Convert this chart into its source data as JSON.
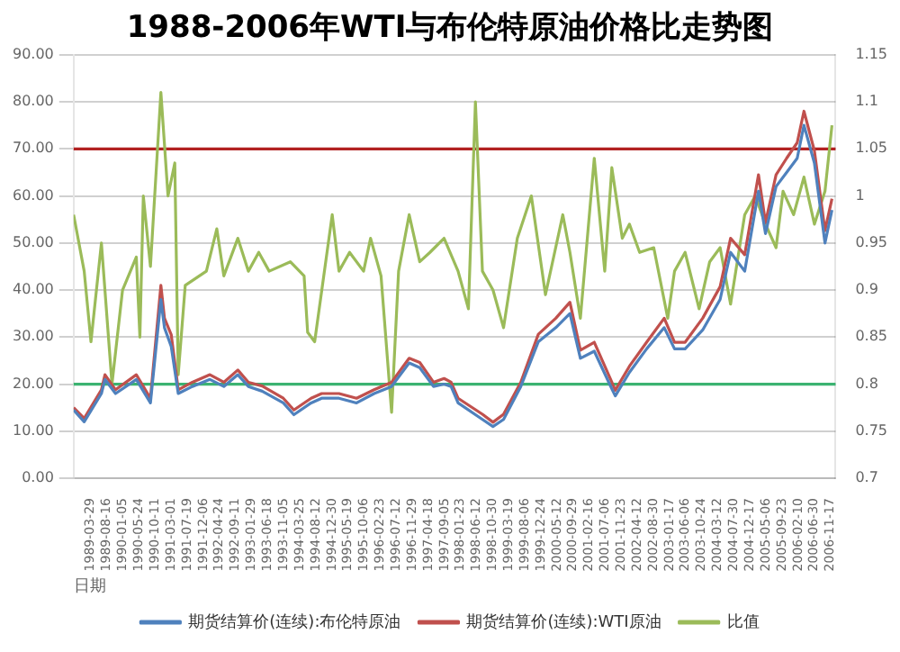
{
  "chart_data": {
    "type": "line",
    "title": "1988-2006年WTI与布伦特原油价格比走势图",
    "xlabel": "日期",
    "xlim": [
      "1988-11-01",
      "2007-01-01"
    ],
    "xticks": [
      {
        "value": "1989-03-29",
        "label": "1989-03-29"
      },
      {
        "value": "1989-08-16",
        "label": "1989-08-16"
      },
      {
        "value": "1990-01-05",
        "label": "1990-01-05"
      },
      {
        "value": "1990-05-24",
        "label": "1990-05-24"
      },
      {
        "value": "1990-10-11",
        "label": "1990-10-11"
      },
      {
        "value": "1991-03-01",
        "label": "1991-03-01"
      },
      {
        "value": "1991-07-19",
        "label": "1991-07-19"
      },
      {
        "value": "1991-12-06",
        "label": "1991-12-06"
      },
      {
        "value": "1992-04-24",
        "label": "1992-04-24"
      },
      {
        "value": "1992-09-11",
        "label": "1992-09-11"
      },
      {
        "value": "1993-01-29",
        "label": "1993-01-29"
      },
      {
        "value": "1993-06-18",
        "label": "1993-06-18"
      },
      {
        "value": "1993-11-05",
        "label": "1993-11-05"
      },
      {
        "value": "1994-03-25",
        "label": "1994-03-25"
      },
      {
        "value": "1994-08-12",
        "label": "1994-08-12"
      },
      {
        "value": "1994-12-30",
        "label": "1994-12-30"
      },
      {
        "value": "1995-05-19",
        "label": "1995-05-19"
      },
      {
        "value": "1995-10-06",
        "label": "1995-10-06"
      },
      {
        "value": "1996-02-23",
        "label": "1996-02-23"
      },
      {
        "value": "1996-07-12",
        "label": "1996-07-12"
      },
      {
        "value": "1996-11-29",
        "label": "1996-11-29"
      },
      {
        "value": "1997-04-18",
        "label": "1997-04-18"
      },
      {
        "value": "1997-09-05",
        "label": "1997-09-05"
      },
      {
        "value": "1998-01-23",
        "label": "1998-01-23"
      },
      {
        "value": "1998-06-12",
        "label": "1998-06-12"
      },
      {
        "value": "1998-10-30",
        "label": "1998-10-30"
      },
      {
        "value": "1999-03-19",
        "label": "1999-03-19"
      },
      {
        "value": "1999-08-06",
        "label": "1999-08-06"
      },
      {
        "value": "1999-12-24",
        "label": "1999-12-24"
      },
      {
        "value": "2000-05-12",
        "label": "2000-05-12"
      },
      {
        "value": "2000-09-29",
        "label": "2000-09-29"
      },
      {
        "value": "2001-02-16",
        "label": "2001-02-16"
      },
      {
        "value": "2001-07-06",
        "label": "2001-07-06"
      },
      {
        "value": "2001-11-23",
        "label": "2001-11-23"
      },
      {
        "value": "2002-04-12",
        "label": "2002-04-12"
      },
      {
        "value": "2002-08-30",
        "label": "2002-08-30"
      },
      {
        "value": "2003-01-17",
        "label": "2003-01-17"
      },
      {
        "value": "2003-06-06",
        "label": "2003-06-06"
      },
      {
        "value": "2003-10-24",
        "label": "2003-10-24"
      },
      {
        "value": "2004-03-12",
        "label": "2004-03-12"
      },
      {
        "value": "2004-07-30",
        "label": "2004-07-30"
      },
      {
        "value": "2004-12-17",
        "label": "2004-12-17"
      },
      {
        "value": "2005-05-06",
        "label": "2005-05-06"
      },
      {
        "value": "2005-09-23",
        "label": "2005-09-23"
      },
      {
        "value": "2006-02-10",
        "label": "2006-02-10"
      },
      {
        "value": "2006-06-30",
        "label": "2006-06-30"
      },
      {
        "value": "2006-11-17",
        "label": "2006-11-17"
      }
    ],
    "ylim": [
      0,
      90
    ],
    "yticks": [
      {
        "value": 0,
        "label": "0.00"
      },
      {
        "value": 10,
        "label": "10.00"
      },
      {
        "value": 20,
        "label": "20.00"
      },
      {
        "value": 30,
        "label": "30.00"
      },
      {
        "value": 40,
        "label": "40.00"
      },
      {
        "value": 50,
        "label": "50.00"
      },
      {
        "value": 60,
        "label": "60.00"
      },
      {
        "value": 70,
        "label": "70.00"
      },
      {
        "value": 80,
        "label": "80.00"
      },
      {
        "value": 90,
        "label": "90.00"
      }
    ],
    "y2lim": [
      0.7,
      1.15
    ],
    "y2ticks": [
      0.7,
      0.75,
      0.8,
      0.85,
      0.9,
      0.95,
      1,
      1.05,
      1.1,
      1.15
    ],
    "grid": "y",
    "legend": "bottom",
    "marker": "none",
    "line_style": "solid",
    "ref_lines": [
      {
        "axis": "y",
        "value": 70,
        "color": "#b22222"
      },
      {
        "axis": "y",
        "value": 20,
        "color": "#3cb371"
      }
    ],
    "x": [
      "1988-11",
      "1989-02",
      "1989-07",
      "1989-08",
      "1989-11",
      "1990-05",
      "1990-09",
      "1990-12",
      "1991-01",
      "1991-03",
      "1991-05",
      "1991-09",
      "1992-02",
      "1992-06",
      "1992-10",
      "1993-01",
      "1993-05",
      "1993-11",
      "1994-02",
      "1994-07",
      "1994-10",
      "1995-03",
      "1995-08",
      "1996-01",
      "1996-06",
      "1996-11",
      "1997-02",
      "1997-06",
      "1997-09",
      "1997-11",
      "1998-01",
      "1998-08",
      "1998-11",
      "1999-02",
      "1999-07",
      "1999-12",
      "2000-05",
      "2000-09",
      "2000-12",
      "2001-04",
      "2001-09",
      "2001-10",
      "2002-02",
      "2002-07",
      "2002-12",
      "2003-03",
      "2003-06",
      "2003-11",
      "2004-04",
      "2004-07",
      "2004-11",
      "2005-03",
      "2005-05",
      "2005-08",
      "2005-11",
      "2006-02",
      "2006-04",
      "2006-07",
      "2006-10",
      "2006-12"
    ],
    "series": [
      {
        "name": "期货结算价(连续):布伦特原油",
        "color": "#4f81bd",
        "values": [
          14.5,
          12,
          18,
          21,
          18,
          21,
          16,
          38,
          32,
          28,
          18,
          19.5,
          21,
          19.5,
          22,
          19.5,
          18.5,
          16,
          13.5,
          16,
          17,
          17,
          16,
          18,
          19.5,
          24.5,
          23.5,
          19.5,
          20,
          19.5,
          16,
          12.5,
          11,
          12.5,
          19.5,
          29,
          32,
          35,
          25.5,
          27,
          19,
          17.5,
          22.5,
          27.5,
          32,
          27.5,
          27.5,
          31.5,
          38,
          48,
          44,
          61,
          52,
          62,
          65,
          68,
          75,
          67,
          50,
          57
        ]
      },
      {
        "name": "期货结算价(连续):WTI原油",
        "color": "#c0504d",
        "values": [
          15,
          12.7,
          18.8,
          22,
          18.8,
          22,
          17,
          41,
          34,
          30.5,
          18.8,
          20.4,
          22,
          20.4,
          23,
          20.4,
          19.6,
          17,
          14.5,
          17,
          18,
          18,
          17,
          18.8,
          20.4,
          25.5,
          24.6,
          20.4,
          21.2,
          20.4,
          17,
          13.6,
          11.9,
          13.6,
          20.4,
          30.6,
          34,
          37.4,
          27.2,
          28.9,
          20.4,
          18.7,
          23.8,
          28.9,
          34,
          28.9,
          28.9,
          34,
          40.7,
          51,
          47.5,
          64.5,
          54.3,
          64.5,
          68,
          71.3,
          78,
          69.6,
          52.6,
          59.4
        ]
      },
      {
        "name": "比值",
        "color": "#9bbb59",
        "axis": "y2",
        "x": [
          "1988-11",
          "1989-02",
          "1989-04",
          "1989-07",
          "1989-10",
          "1990-01",
          "1990-05",
          "1990-06",
          "1990-07",
          "1990-09",
          "1990-12",
          "1991-02",
          "1991-04",
          "1991-05",
          "1991-07",
          "1992-01",
          "1992-04",
          "1992-06",
          "1992-10",
          "1993-01",
          "1993-04",
          "1993-07",
          "1994-01",
          "1994-05",
          "1994-06",
          "1994-08",
          "1995-01",
          "1995-03",
          "1995-06",
          "1995-10",
          "1995-12",
          "1996-03",
          "1996-06",
          "1996-08",
          "1996-11",
          "1997-02",
          "1997-05",
          "1997-09",
          "1998-01",
          "1998-04",
          "1998-06",
          "1998-08",
          "1998-11",
          "1999-02",
          "1999-06",
          "1999-10",
          "2000-02",
          "2000-07",
          "2000-09",
          "2000-12",
          "2001-04",
          "2001-07",
          "2001-09",
          "2001-12",
          "2002-02",
          "2002-05",
          "2002-09",
          "2003-01",
          "2003-03",
          "2003-06",
          "2003-10",
          "2004-01",
          "2004-04",
          "2004-07",
          "2004-11",
          "2005-02",
          "2005-05",
          "2005-08",
          "2005-10",
          "2006-01",
          "2006-04",
          "2006-07",
          "2006-10",
          "2006-12"
        ],
        "values": [
          0.98,
          0.92,
          0.845,
          0.95,
          0.8,
          0.9,
          0.935,
          0.85,
          1.0,
          0.925,
          1.11,
          1.0,
          1.035,
          0.81,
          0.905,
          0.92,
          0.965,
          0.915,
          0.955,
          0.92,
          0.94,
          0.92,
          0.93,
          0.915,
          0.855,
          0.845,
          0.98,
          0.92,
          0.94,
          0.92,
          0.955,
          0.915,
          0.77,
          0.92,
          0.98,
          0.93,
          0.94,
          0.955,
          0.92,
          0.88,
          1.1,
          0.92,
          0.9,
          0.86,
          0.955,
          1.0,
          0.895,
          0.98,
          0.94,
          0.87,
          1.04,
          0.92,
          1.03,
          0.955,
          0.97,
          0.94,
          0.945,
          0.87,
          0.92,
          0.94,
          0.88,
          0.93,
          0.945,
          0.885,
          0.98,
          1.0,
          0.97,
          0.945,
          1.005,
          0.98,
          1.02,
          0.97,
          1.005,
          1.075
        ]
      }
    ]
  }
}
